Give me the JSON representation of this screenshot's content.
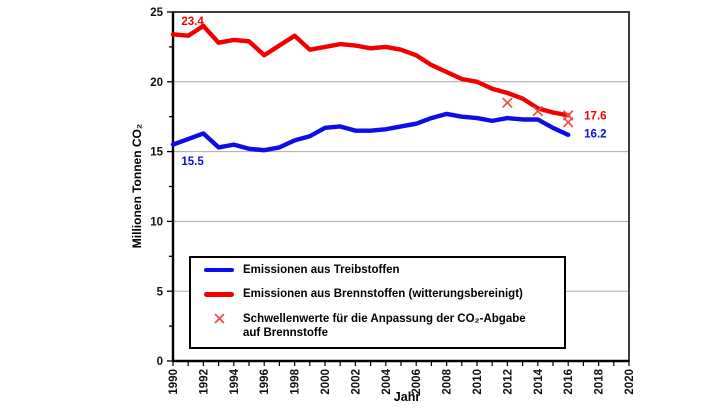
{
  "figure": {
    "background": "#ffffff"
  },
  "chart_data": {
    "type": "line",
    "title": "",
    "xlabel": "Jahr",
    "ylabel": "Millionen Tonnen CO₂",
    "xlim": [
      1990,
      2020
    ],
    "ylim": [
      0,
      25
    ],
    "x_tick_step": 1,
    "x_label_step": 2,
    "y_ticks": [
      0,
      5,
      10,
      15,
      20,
      25
    ],
    "y_minor_tick_step": 2.5,
    "grid": "horizontal",
    "gridline_values": [
      5,
      10,
      15,
      20
    ],
    "gridline_color": "#a9a9a9",
    "x": [
      1990,
      1991,
      1992,
      1993,
      1994,
      1995,
      1996,
      1997,
      1998,
      1999,
      2000,
      2001,
      2002,
      2003,
      2004,
      2005,
      2006,
      2007,
      2008,
      2009,
      2010,
      2011,
      2012,
      2013,
      2014,
      2015,
      2016
    ],
    "series": [
      {
        "name": "Emissionen aus Treibstoffen",
        "color": "#0d0dea",
        "values": [
          15.5,
          15.9,
          16.3,
          15.3,
          15.5,
          15.2,
          15.1,
          15.3,
          15.8,
          16.1,
          16.7,
          16.8,
          16.5,
          16.5,
          16.6,
          16.8,
          17.0,
          17.4,
          17.7,
          17.5,
          17.4,
          17.2,
          17.4,
          17.3,
          17.3,
          16.7,
          16.2
        ]
      },
      {
        "name": "Emissionen aus Brennstoffen (witterungsbereinigt)",
        "color": "#f20000",
        "values": [
          23.4,
          23.3,
          24.0,
          22.8,
          23.0,
          22.9,
          21.9,
          22.6,
          23.3,
          22.3,
          22.5,
          22.7,
          22.6,
          22.4,
          22.5,
          22.3,
          21.9,
          21.2,
          20.7,
          20.2,
          20.0,
          19.5,
          19.2,
          18.8,
          18.1,
          17.8,
          17.6
        ]
      }
    ],
    "threshold_markers": {
      "name": "Schwellenwerte für die Anpassung der CO₂-Abgabe auf Brennstoffe",
      "color": "#ef4b4b",
      "points": [
        [
          2012,
          18.5
        ],
        [
          2014,
          17.9
        ],
        [
          2016,
          17.6
        ],
        [
          2016,
          17.1
        ]
      ]
    },
    "annotations": [
      {
        "text": "23.4",
        "x": 1990.55,
        "y": 24.35,
        "color": "#f20000"
      },
      {
        "text": "15.5",
        "x": 1990.55,
        "y": 14.35,
        "color": "#0d0dea"
      },
      {
        "text": "17.6",
        "x": 2017.05,
        "y": 17.6,
        "color": "#f20000"
      },
      {
        "text": "16.2",
        "x": 2017.05,
        "y": 16.3,
        "color": "#0d0dea"
      }
    ],
    "legend": {
      "position": "inside-bottom",
      "items": [
        {
          "swatch": "line",
          "color": "#0d0dea",
          "label": "Emissionen aus Treibstoffen"
        },
        {
          "swatch": "line",
          "color": "#f20000",
          "label": "Emissionen aus Brennstoffen (witterungsbereinigt)"
        },
        {
          "swatch": "x-marker",
          "color": "#ef4b4b",
          "label": "Schwellenwerte für die Anpassung  der CO₂-Abgabe auf Brennstoffe",
          "label_line1": "Schwellenwerte für die Anpassung  der CO₂-Abgabe",
          "label_line2": "auf Brennstoffe"
        }
      ]
    }
  }
}
